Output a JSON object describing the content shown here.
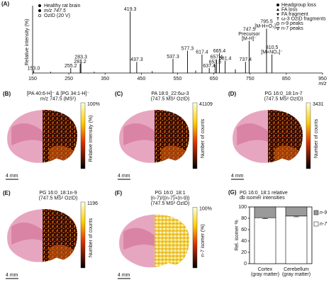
{
  "chart_data": [
    {
      "type": "stem",
      "panel": "(A)",
      "xlabel": "m/z",
      "ylabel": "Relative intensity (%)",
      "annotations": [
        "Healthy rat brain",
        "m/z 747.5",
        "OzID (20 V)"
      ],
      "legend": [
        "Headgroup loss",
        "FA loss",
        "FA fragment",
        "ω-3 OzID fragments",
        "n-9 peaks",
        "n-7 peaks"
      ],
      "xlim": [
        150,
        950
      ],
      "xticks": [
        150,
        250,
        350,
        450,
        550,
        650,
        750,
        850,
        950
      ],
      "ylim": [
        0,
        100
      ],
      "color": "#000000",
      "x": [
        153.0,
        200,
        255.2,
        281.2,
        283.3,
        320,
        419.3,
        437.3,
        480,
        537.3,
        577.3,
        600,
        617.4,
        637.4,
        653.5,
        657.4,
        665.4,
        681.4,
        709.5,
        737.4,
        747.5,
        795.5,
        810.5
      ],
      "values": [
        4,
        2,
        8,
        15,
        22,
        2,
        100,
        18,
        3,
        23,
        36,
        4,
        30,
        8,
        14,
        22,
        32,
        20,
        6,
        18,
        52,
        72,
        30
      ],
      "labels": [
        "153.0",
        null,
        "255.2",
        "281.2",
        "283.3",
        null,
        "419.3",
        "437.3",
        null,
        "537.3",
        "577.3",
        null,
        "617.4",
        "637.4",
        "653.5",
        "657.4",
        "665.4",
        "681.4",
        null,
        "737.4",
        "747.5",
        "795.5",
        "810.5"
      ],
      "label_notes": [
        null,
        null,
        null,
        null,
        null,
        null,
        null,
        null,
        null,
        null,
        null,
        null,
        null,
        null,
        null,
        null,
        null,
        null,
        null,
        null,
        [
          "Precursor",
          "[M-H]⁻"
        ],
        [
          "[M-H+O₃]⁻"
        ],
        [
          "[M+NO₃]⁻"
        ]
      ]
    },
    {
      "type": "stacked-bar",
      "panel": "(G)",
      "title": [
        "PG 16:0_18:1 relative",
        "db isomer intensities"
      ],
      "ylabel": "Rel. isomer %",
      "categories": [
        "Cortex",
        "Cerebellum"
      ],
      "category_notes": [
        "(gray matter)",
        "(gray matter)"
      ],
      "ylim": [
        0,
        100
      ],
      "yticks": [
        0,
        20,
        40,
        60,
        80,
        100
      ],
      "series": [
        {
          "name": "n-7",
          "color": "#ffffff",
          "values": [
            81,
            84
          ],
          "errors": [
            1.5,
            1.5
          ]
        },
        {
          "name": "n-9",
          "color": "#9a9a9a",
          "values": [
            19,
            16
          ]
        }
      ]
    }
  ],
  "panels": [
    {
      "letter": "(B)",
      "title": [
        "[PA 40:6-H]⁻ & [PG 34:1-H]⁻",
        "m/z 747.5 (MS¹)"
      ],
      "colorbar_max": "100%",
      "colorbar_label": "Relative intensity (%)",
      "scale": "4 mm"
    },
    {
      "letter": "(C)",
      "title": [
        "PA 18:0_22:6ω-3",
        "(747.5 MS² OzID)"
      ],
      "colorbar_max": 41109,
      "colorbar_label": "Number of counts",
      "scale": "4 mm"
    },
    {
      "letter": "(D)",
      "title": [
        "PG 16:0_18:1n-7",
        "(747.5 MS² OzID)"
      ],
      "colorbar_max": 3431,
      "colorbar_label": "Number of counts",
      "scale": "4 mm"
    },
    {
      "letter": "(E)",
      "title": [
        "PG 16:0_18:1n-9",
        "(747.5 MS² OzID)"
      ],
      "colorbar_max": 1196,
      "colorbar_label": "Number of counts",
      "scale": "4 mm"
    },
    {
      "letter": "(F)",
      "title": [
        "PG 16:0_18:1",
        "(n-7)/((n-7)+(n-9))",
        "(747.5 MS² OzID)"
      ],
      "colorbar_max": "100%",
      "colorbar_label": "n-7 isomer (%)",
      "scale": "4 mm"
    }
  ]
}
